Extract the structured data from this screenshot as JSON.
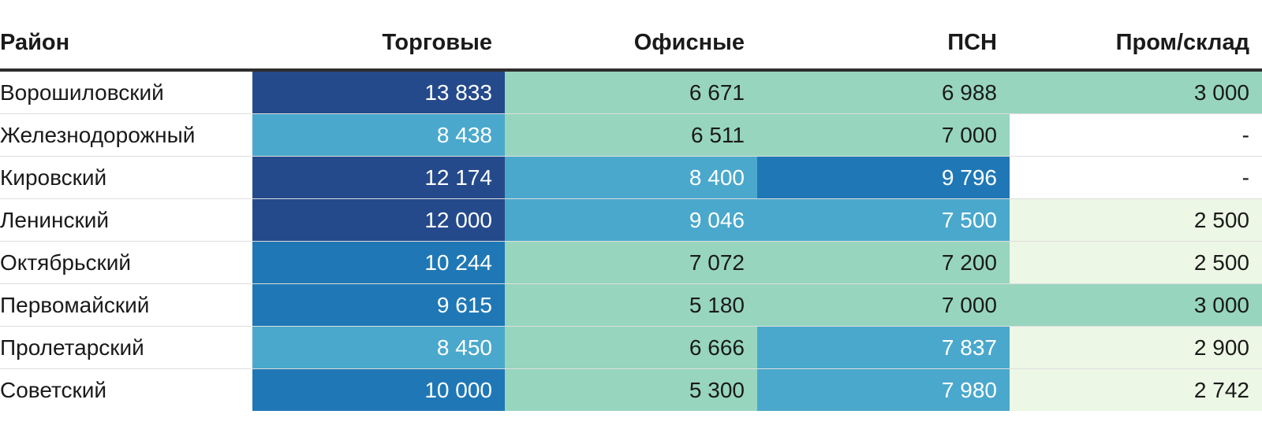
{
  "chart_data": {
    "type": "table",
    "columns": [
      "Район",
      "Торговые",
      "Офисные",
      "ПСН",
      "Пром/склад"
    ],
    "rows": [
      {
        "district": "Ворошиловский",
        "values": [
          "13 833",
          "6 671",
          "6 988",
          "3 000"
        ]
      },
      {
        "district": "Железнодорожный",
        "values": [
          "8 438",
          "6 511",
          "7 000",
          "-"
        ]
      },
      {
        "district": "Кировский",
        "values": [
          "12 174",
          "8 400",
          "9 796",
          "-"
        ]
      },
      {
        "district": "Ленинский",
        "values": [
          "12 000",
          "9 046",
          "7 500",
          "2 500"
        ]
      },
      {
        "district": "Октябрьский",
        "values": [
          "10 244",
          "7 072",
          "7 200",
          "2 500"
        ]
      },
      {
        "district": "Первомайский",
        "values": [
          "9 615",
          "5 180",
          "7 000",
          "3 000"
        ]
      },
      {
        "district": "Пролетарский",
        "values": [
          "8 450",
          "6 666",
          "7 837",
          "2 900"
        ]
      },
      {
        "district": "Советский",
        "values": [
          "10 000",
          "5 300",
          "7 980",
          "2 742"
        ]
      }
    ],
    "color_scale": {
      "thresholds": [
        1,
        3000,
        7400,
        9500,
        11500
      ],
      "colors": [
        "#ffffff",
        "#edf7e5",
        "#97d5bf",
        "#4aa8cc",
        "#1f78b5",
        "#254a8b"
      ],
      "text_colors": [
        "#1a1a1a",
        "#1a1a1a",
        "#1a1a1a",
        "#ffffff",
        "#ffffff",
        "#ffffff"
      ]
    }
  }
}
